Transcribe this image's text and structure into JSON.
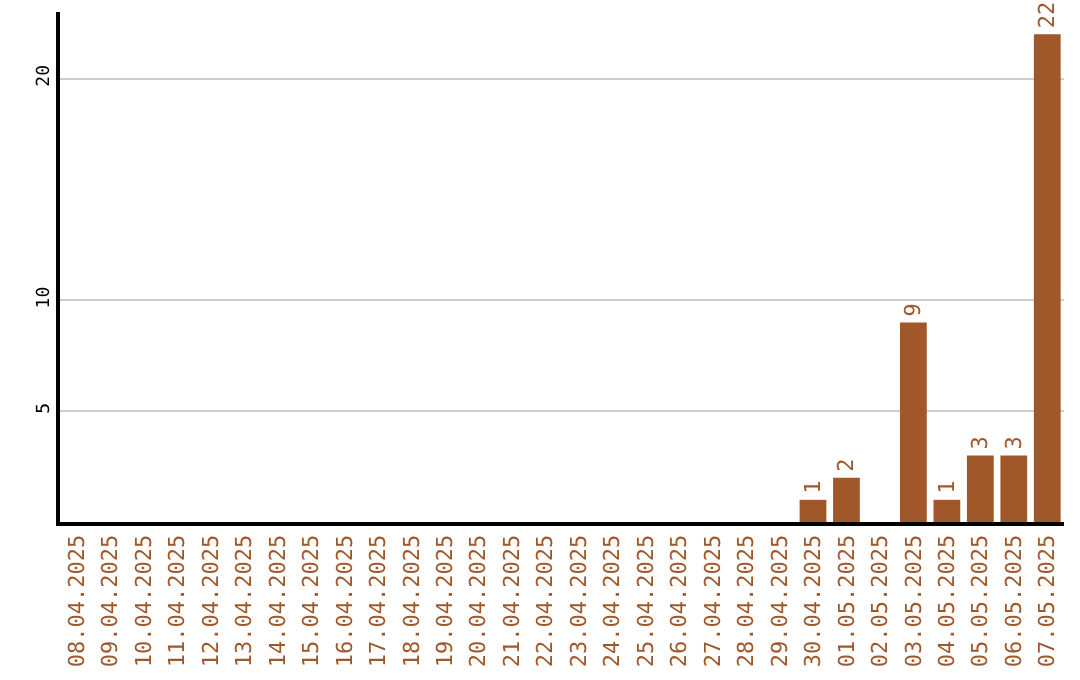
{
  "chart_data": {
    "type": "bar",
    "categories": [
      "08.04.2025",
      "09.04.2025",
      "10.04.2025",
      "11.04.2025",
      "12.04.2025",
      "13.04.2025",
      "14.04.2025",
      "15.04.2025",
      "16.04.2025",
      "17.04.2025",
      "18.04.2025",
      "19.04.2025",
      "20.04.2025",
      "21.04.2025",
      "22.04.2025",
      "23.04.2025",
      "24.04.2025",
      "25.04.2025",
      "26.04.2025",
      "27.04.2025",
      "28.04.2025",
      "29.04.2025",
      "30.04.2025",
      "01.05.2025",
      "02.05.2025",
      "03.05.2025",
      "04.05.2025",
      "05.05.2025",
      "06.05.2025",
      "07.05.2025"
    ],
    "values": [
      0,
      0,
      0,
      0,
      0,
      0,
      0,
      0,
      0,
      0,
      0,
      0,
      0,
      0,
      0,
      0,
      0,
      0,
      0,
      0,
      0,
      0,
      1,
      2,
      0,
      9,
      1,
      3,
      3,
      22
    ],
    "value_labels": [
      null,
      null,
      null,
      null,
      null,
      null,
      null,
      null,
      null,
      null,
      null,
      null,
      null,
      null,
      null,
      null,
      null,
      null,
      null,
      null,
      null,
      null,
      "1",
      "2",
      null,
      "9",
      "1",
      "3",
      "3",
      "22"
    ],
    "color": "#a0582a",
    "ylim": [
      0,
      23
    ],
    "yticks": [
      5,
      10,
      20
    ],
    "grid": "y",
    "legend": false
  }
}
